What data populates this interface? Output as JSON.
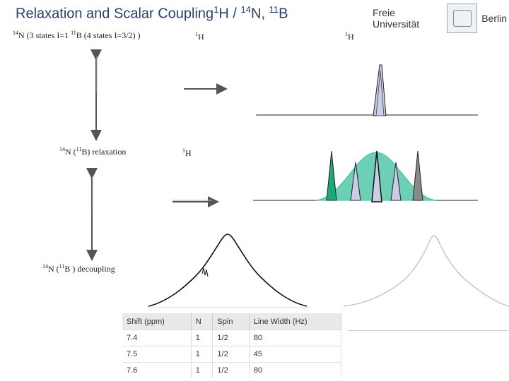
{
  "slide": {
    "title_main": "Relaxation and Scalar Coupling",
    "title_h_mass": "1",
    "title_h": "H / ",
    "title_n_mass": "14",
    "title_n": "N, ",
    "title_b_mass": "11",
    "title_b": "B"
  },
  "logo": {
    "left_text": "Freie Universität",
    "right_text": "Berlin"
  },
  "labels": {
    "states_n_mass": "14",
    "states_n": "N  (3 states I=1  ",
    "states_b_mass": "11",
    "states_b": "B  (4  states  I=3/2) )",
    "h1_top_mass": "1",
    "h1_top": "H",
    "h1_right_mass": "1",
    "h1_right": "H",
    "relax_n_mass": "14",
    "relax_n": "N  (",
    "relax_b_mass": "11",
    "relax_b": "B) relaxation",
    "h1_mid_mass": "1",
    "h1_mid": "H",
    "decoup_n_mass": "14",
    "decoup_n": "N  (",
    "decoup_b_mass": "11",
    "decoup_b": "B ) decoupling"
  },
  "table": {
    "headers": [
      "Shift (ppm)",
      "N",
      "Spin",
      "Line Width (Hz)"
    ],
    "rows": [
      [
        "7.4",
        "1",
        "1/2",
        "80"
      ],
      [
        "7.5",
        "1",
        "1/2",
        "45"
      ],
      [
        "7.6",
        "1",
        "1/2",
        "80"
      ]
    ]
  },
  "colors": {
    "title": "#2a3f6b",
    "arrow": "#555555",
    "teal": "#3cbf9c",
    "peak_fill": "#c9cde6",
    "peak_green": "#1fa776",
    "peak_gray": "#8a8a8a"
  }
}
